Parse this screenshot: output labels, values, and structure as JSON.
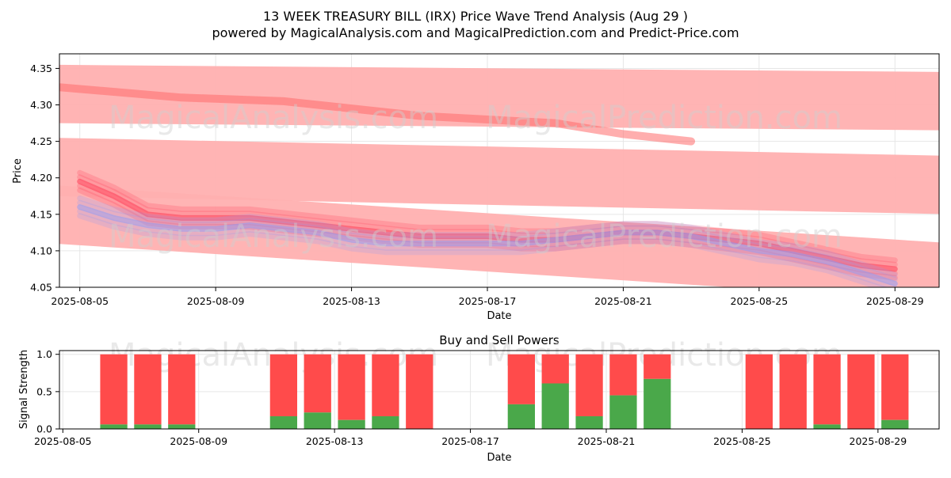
{
  "title_line1": "13 WEEK TREASURY BILL (IRX) Price Wave Trend Analysis (Aug 29 )",
  "title_line2": "powered by MagicalAnalysis.com and MagicalPrediction.com and Predict-Price.com",
  "watermarks": [
    "MagicalAnalysis.com",
    "MagicalPrediction.com"
  ],
  "colors": {
    "red": "#ff4b4b",
    "green": "#4aa84a",
    "blue": "#9aa8ff",
    "band": "#ffb0b0"
  },
  "chart_data": [
    {
      "type": "line",
      "name": "price-wave-trend",
      "xlabel": "Date",
      "ylabel": "Price",
      "ylim": [
        4.05,
        4.37
      ],
      "xlim_days": [
        -0.6,
        25.3
      ],
      "x_origin": "2025-08-05",
      "xticks": [
        {
          "day": 0,
          "label": "2025-08-05"
        },
        {
          "day": 4,
          "label": "2025-08-09"
        },
        {
          "day": 8,
          "label": "2025-08-13"
        },
        {
          "day": 12,
          "label": "2025-08-17"
        },
        {
          "day": 16,
          "label": "2025-08-21"
        },
        {
          "day": 20,
          "label": "2025-08-25"
        },
        {
          "day": 24,
          "label": "2025-08-29"
        }
      ],
      "yticks": [
        "4.05",
        "4.10",
        "4.15",
        "4.20",
        "4.25",
        "4.30",
        "4.35"
      ],
      "grid": true,
      "bands": [
        {
          "name": "upper-band",
          "x": [
            -0.8,
            25.8
          ],
          "center": [
            4.315,
            4.305
          ],
          "half_width": 0.04
        },
        {
          "name": "middle-band",
          "x": [
            -0.8,
            25.8
          ],
          "center": [
            4.215,
            4.19
          ],
          "half_width": 0.04
        },
        {
          "name": "lower-band",
          "x": [
            -0.8,
            25.8
          ],
          "center": [
            4.15,
            4.07
          ],
          "half_width": 0.04
        }
      ],
      "series": [
        {
          "name": "upper-trend-line",
          "color": "#ff6b6b",
          "x": [
            -0.8,
            3,
            6,
            8,
            10,
            12,
            14,
            16,
            18
          ],
          "y": [
            4.325,
            4.31,
            4.305,
            4.295,
            4.285,
            4.28,
            4.275,
            4.26,
            4.25
          ]
        },
        {
          "name": "price-wave-red",
          "color": "#ff3d55",
          "x": [
            0,
            1,
            2,
            3,
            4,
            5,
            6,
            7,
            8,
            9,
            10,
            11,
            12,
            13,
            14,
            15,
            16,
            17,
            18,
            19,
            20,
            21,
            22,
            23,
            24
          ],
          "y": [
            4.195,
            4.175,
            4.15,
            4.145,
            4.145,
            4.145,
            4.14,
            4.135,
            4.13,
            4.125,
            4.12,
            4.12,
            4.12,
            4.115,
            4.115,
            4.12,
            4.125,
            4.125,
            4.12,
            4.115,
            4.11,
            4.1,
            4.09,
            4.08,
            4.075
          ]
        },
        {
          "name": "price-wave-blue",
          "color": "#8f9cf5",
          "x": [
            0,
            1,
            2,
            3,
            4,
            5,
            6,
            7,
            8,
            9,
            10,
            11,
            12,
            13,
            14,
            15,
            16,
            17,
            18,
            19,
            20,
            21,
            22,
            23,
            24
          ],
          "y": [
            4.16,
            4.145,
            4.135,
            4.13,
            4.13,
            4.135,
            4.13,
            4.125,
            4.115,
            4.11,
            4.11,
            4.11,
            4.11,
            4.11,
            4.115,
            4.12,
            4.125,
            4.125,
            4.12,
            4.11,
            4.1,
            4.095,
            4.085,
            4.07,
            4.055
          ]
        }
      ]
    },
    {
      "type": "bar",
      "name": "buy-sell-powers",
      "title": "Buy and Sell Powers",
      "xlabel": "Date",
      "ylabel": "Signal Strength",
      "ylim": [
        0,
        1.05
      ],
      "xlim_days": [
        -0.6,
        25.3
      ],
      "x_origin": "2025-08-05",
      "xticks": [
        {
          "day": 0,
          "label": "2025-08-05"
        },
        {
          "day": 4,
          "label": "2025-08-09"
        },
        {
          "day": 8,
          "label": "2025-08-13"
        },
        {
          "day": 12,
          "label": "2025-08-17"
        },
        {
          "day": 16,
          "label": "2025-08-21"
        },
        {
          "day": 20,
          "label": "2025-08-25"
        },
        {
          "day": 24,
          "label": "2025-08-29"
        }
      ],
      "yticks": [
        "0.0",
        "0.5",
        "1.0"
      ],
      "grid": true,
      "bars": [
        {
          "day": 1,
          "buy": 0.06,
          "sell": 0.94
        },
        {
          "day": 2,
          "buy": 0.06,
          "sell": 0.94
        },
        {
          "day": 3,
          "buy": 0.06,
          "sell": 0.94
        },
        {
          "day": 6,
          "buy": 0.17,
          "sell": 0.83
        },
        {
          "day": 7,
          "buy": 0.22,
          "sell": 0.78
        },
        {
          "day": 8,
          "buy": 0.12,
          "sell": 0.88
        },
        {
          "day": 9,
          "buy": 0.17,
          "sell": 0.83
        },
        {
          "day": 10,
          "buy": 0.0,
          "sell": 1.0
        },
        {
          "day": 13,
          "buy": 0.33,
          "sell": 0.67
        },
        {
          "day": 14,
          "buy": 0.61,
          "sell": 0.39
        },
        {
          "day": 15,
          "buy": 0.17,
          "sell": 0.83
        },
        {
          "day": 16,
          "buy": 0.45,
          "sell": 0.55
        },
        {
          "day": 17,
          "buy": 0.67,
          "sell": 0.33
        },
        {
          "day": 20,
          "buy": 0.0,
          "sell": 1.0
        },
        {
          "day": 21,
          "buy": 0.0,
          "sell": 1.0
        },
        {
          "day": 22,
          "buy": 0.06,
          "sell": 0.94
        },
        {
          "day": 23,
          "buy": 0.0,
          "sell": 1.0
        },
        {
          "day": 24,
          "buy": 0.12,
          "sell": 0.88
        }
      ]
    }
  ]
}
